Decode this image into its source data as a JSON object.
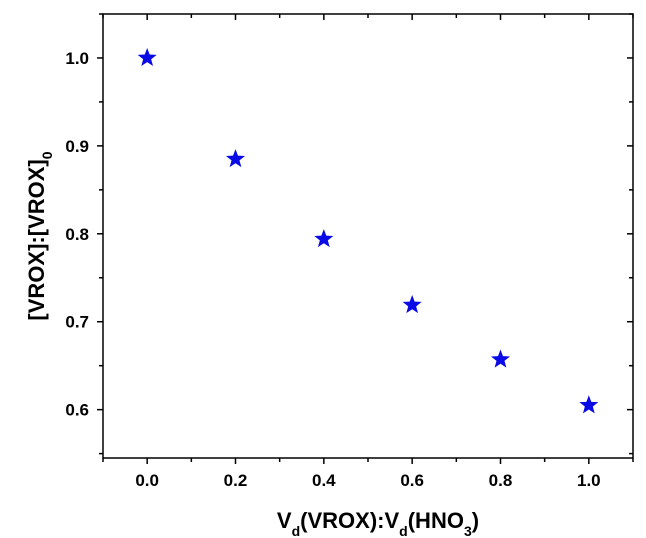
{
  "chart_data": {
    "type": "scatter",
    "title": "",
    "xlabel": {
      "parts": [
        "V",
        "d",
        "(VROX):V",
        "d",
        "(HNO",
        "3",
        ")"
      ]
    },
    "ylabel": {
      "parts": [
        "[VROX]:[VROX]",
        "0"
      ]
    },
    "xlim": [
      -0.1,
      1.1
    ],
    "ylim": [
      0.545,
      1.05
    ],
    "xticks": [
      0.0,
      0.2,
      0.4,
      0.6,
      0.8,
      1.0
    ],
    "xtick_labels": [
      "0.0",
      "0.2",
      "0.4",
      "0.6",
      "0.8",
      "1.0"
    ],
    "yticks": [
      0.6,
      0.7,
      0.8,
      0.9,
      1.0
    ],
    "ytick_labels": [
      "0.6",
      "0.7",
      "0.8",
      "0.9",
      "1.0"
    ],
    "marker": "star",
    "marker_color": "#0a0ae6",
    "grid": false,
    "legend": "none",
    "series": [
      {
        "x": [
          0.0,
          0.2,
          0.4,
          0.6,
          0.8,
          1.0
        ],
        "y": [
          1.0,
          0.885,
          0.794,
          0.719,
          0.657,
          0.605
        ]
      }
    ]
  }
}
